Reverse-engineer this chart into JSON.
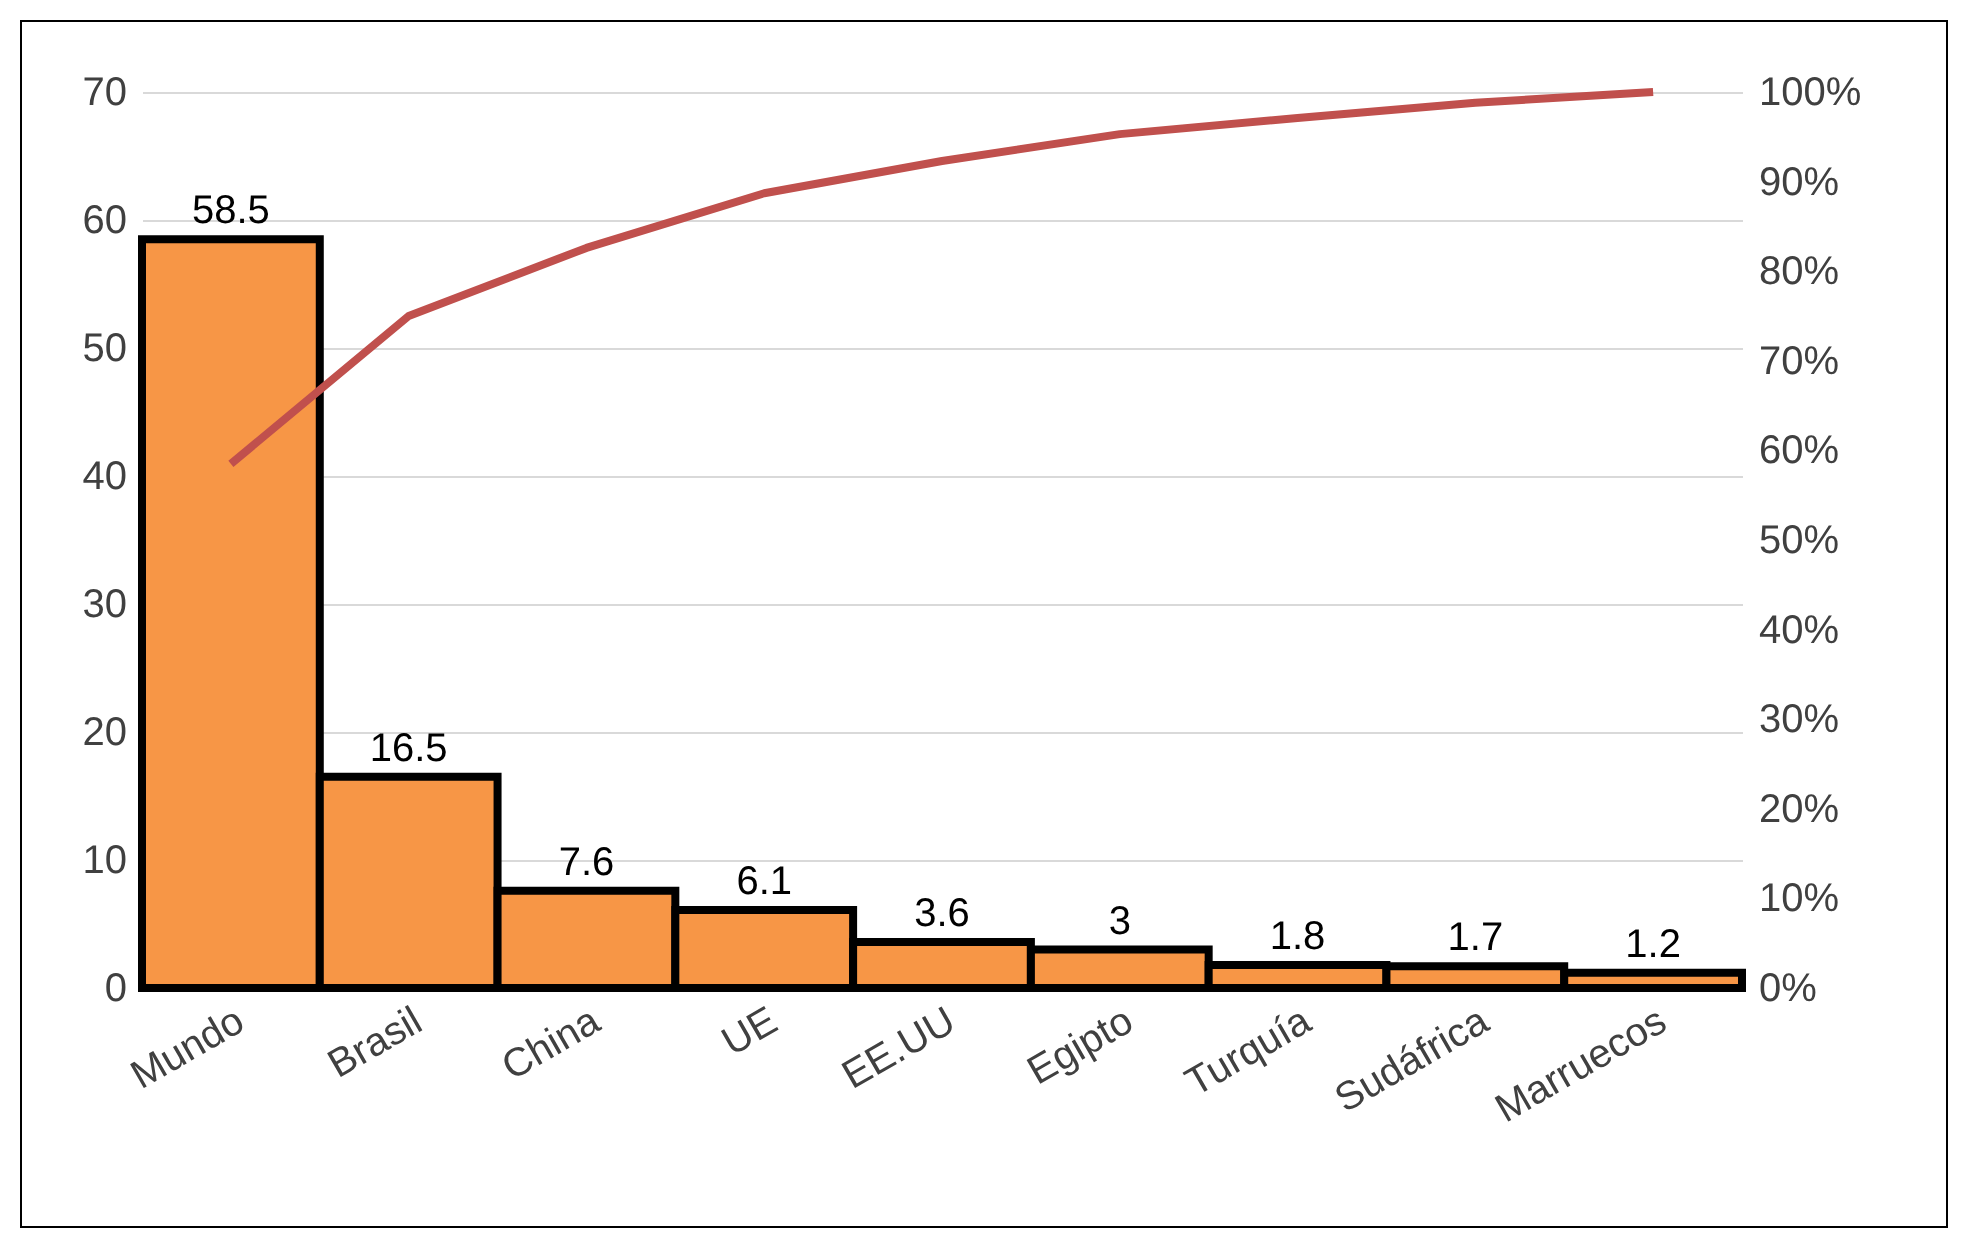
{
  "chart_data": {
    "type": "bar",
    "categories": [
      "Mundo",
      "Brasil",
      "China",
      "UE",
      "EE.UU",
      "Egipto",
      "Turquía",
      "Sudáfrica",
      "Marruecos"
    ],
    "series": [
      {
        "color": "#f79646",
        "values": [
          58.5,
          16.5,
          7.6,
          6.1,
          3.6,
          3,
          1.8,
          1.7,
          1.2
        ],
        "value_labels": [
          "58.5",
          "16.5",
          "7.6",
          "6.1",
          "3.6",
          "3",
          "1.8",
          "1.7",
          "1.2"
        ]
      },
      {
        "type": "line",
        "axis": "y2",
        "color": "#c0504d",
        "values": [
          58.5,
          75,
          82.6,
          88.7,
          92.3,
          95.3,
          97.1,
          98.8,
          100
        ]
      }
    ],
    "ylim": [
      0,
      70
    ],
    "yticks": [
      0,
      10,
      20,
      30,
      40,
      50,
      60,
      70
    ],
    "y2lim": [
      0,
      100
    ],
    "y2ticks": [
      {
        "value": 0,
        "label": "0%"
      },
      {
        "value": 10,
        "label": "10%"
      },
      {
        "value": 20,
        "label": "20%"
      },
      {
        "value": 30,
        "label": "30%"
      },
      {
        "value": 40,
        "label": "40%"
      },
      {
        "value": 50,
        "label": "50%"
      },
      {
        "value": 60,
        "label": "60%"
      },
      {
        "value": 70,
        "label": "70%"
      },
      {
        "value": 80,
        "label": "80%"
      },
      {
        "value": 90,
        "label": "90%"
      },
      {
        "value": 100,
        "label": "100%"
      }
    ],
    "grid": "y",
    "marker": "none",
    "line_style": "solid"
  }
}
